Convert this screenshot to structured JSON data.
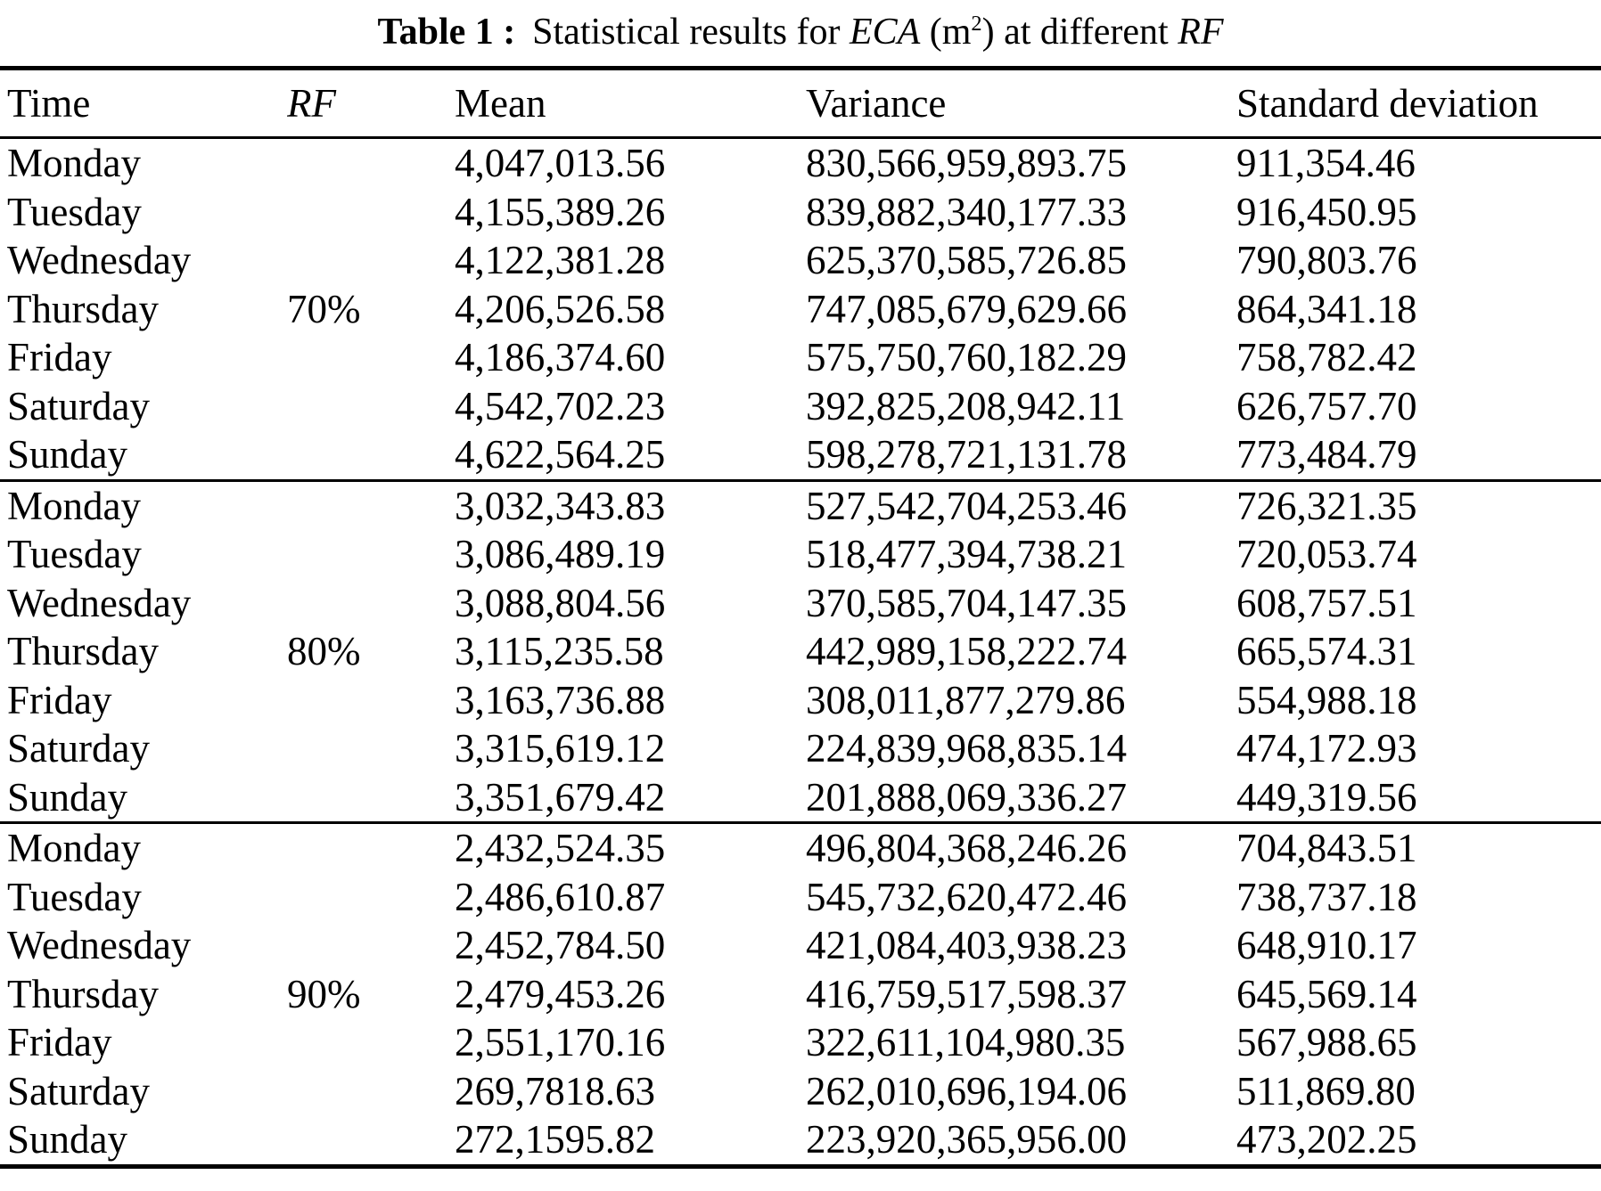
{
  "page": {
    "background_color": "#ffffff",
    "text_color": "#000000"
  },
  "title": {
    "full_text": "Table 1 : Statistical results for ECA (m2) at different RF",
    "parts": [
      {
        "text": "Table 1 :",
        "style": "bold"
      },
      {
        "text": "Statistical results for ",
        "style": "normal"
      },
      {
        "text": "ECA",
        "style": "italic"
      },
      {
        "text": " (m",
        "style": "normal"
      },
      {
        "text": "2",
        "style": "superscript"
      },
      {
        "text": ") at different ",
        "style": "normal"
      },
      {
        "text": "RF",
        "style": "italic"
      }
    ]
  },
  "table": {
    "headers": [
      {
        "label": "Time",
        "italic": false
      },
      {
        "label": "RF",
        "italic": true
      },
      {
        "label": "Mean",
        "italic": false
      },
      {
        "label": "Variance",
        "italic": false
      },
      {
        "label": "Standard deviation",
        "italic": false
      }
    ],
    "groups": [
      {
        "rf": "70%",
        "rf_row_index": 3,
        "rows": [
          {
            "time": "Monday",
            "mean": "4,047,013.56",
            "variance": "830,566,959,893.75",
            "std": "911,354.46"
          },
          {
            "time": "Tuesday",
            "mean": "4,155,389.26",
            "variance": "839,882,340,177.33",
            "std": "916,450.95"
          },
          {
            "time": "Wednesday",
            "mean": "4,122,381.28",
            "variance": "625,370,585,726.85",
            "std": "790,803.76"
          },
          {
            "time": "Thursday",
            "mean": "4,206,526.58",
            "variance": "747,085,679,629.66",
            "std": "864,341.18"
          },
          {
            "time": "Friday",
            "mean": "4,186,374.60",
            "variance": "575,750,760,182.29",
            "std": "758,782.42"
          },
          {
            "time": "Saturday",
            "mean": "4,542,702.23",
            "variance": "392,825,208,942.11",
            "std": "626,757.70"
          },
          {
            "time": "Sunday",
            "mean": "4,622,564.25",
            "variance": "598,278,721,131.78",
            "std": "773,484.79"
          }
        ]
      },
      {
        "rf": "80%",
        "rf_row_index": 3,
        "rows": [
          {
            "time": "Monday",
            "mean": "3,032,343.83",
            "variance": "527,542,704,253.46",
            "std": "726,321.35"
          },
          {
            "time": "Tuesday",
            "mean": "3,086,489.19",
            "variance": "518,477,394,738.21",
            "std": "720,053.74"
          },
          {
            "time": "Wednesday",
            "mean": "3,088,804.56",
            "variance": "370,585,704,147.35",
            "std": "608,757.51"
          },
          {
            "time": "Thursday",
            "mean": "3,115,235.58",
            "variance": "442,989,158,222.74",
            "std": "665,574.31"
          },
          {
            "time": "Friday",
            "mean": "3,163,736.88",
            "variance": "308,011,877,279.86",
            "std": "554,988.18"
          },
          {
            "time": "Saturday",
            "mean": "3,315,619.12",
            "variance": "224,839,968,835.14",
            "std": "474,172.93"
          },
          {
            "time": "Sunday",
            "mean": "3,351,679.42",
            "variance": "201,888,069,336.27",
            "std": "449,319.56"
          }
        ]
      },
      {
        "rf": "90%",
        "rf_row_index": 3,
        "rows": [
          {
            "time": "Monday",
            "mean": "2,432,524.35",
            "variance": "496,804,368,246.26",
            "std": "704,843.51"
          },
          {
            "time": "Tuesday",
            "mean": "2,486,610.87",
            "variance": "545,732,620,472.46",
            "std": "738,737.18"
          },
          {
            "time": "Wednesday",
            "mean": "2,452,784.50",
            "variance": "421,084,403,938.23",
            "std": "648,910.17"
          },
          {
            "time": "Thursday",
            "mean": "2,479,453.26",
            "variance": "416,759,517,598.37",
            "std": "645,569.14"
          },
          {
            "time": "Friday",
            "mean": "2,551,170.16",
            "variance": "322,611,104,980.35",
            "std": "567,988.65"
          },
          {
            "time": "Saturday",
            "mean": "269,7818.63",
            "variance": "262,010,696,194.06",
            "std": "511,869.80"
          },
          {
            "time": "Sunday",
            "mean": "272,1595.82",
            "variance": "223,920,365,956.00",
            "std": "473,202.25"
          }
        ]
      }
    ]
  }
}
